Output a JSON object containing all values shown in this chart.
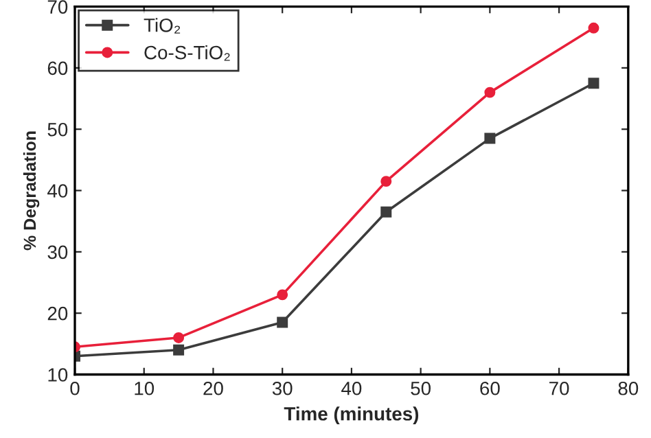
{
  "chart_data": {
    "type": "line",
    "xlabel": "Time (minutes)",
    "ylabel": "% Degradation",
    "x": [
      0,
      15,
      30,
      45,
      60,
      75
    ],
    "series": [
      {
        "name": "TiO₂",
        "color": "#3c3c3c",
        "marker": "square",
        "values": [
          13,
          14,
          18.5,
          36.5,
          48.5,
          57.5
        ]
      },
      {
        "name": "Co-S-TiO₂",
        "color": "#e8203a",
        "marker": "circle",
        "values": [
          14.5,
          16,
          23,
          41.5,
          56,
          66.5
        ]
      }
    ],
    "xlim": [
      0,
      80
    ],
    "xticks": [
      0,
      10,
      20,
      30,
      40,
      50,
      60,
      70,
      80
    ],
    "ylim": [
      10,
      70
    ],
    "yticks": [
      10,
      20,
      30,
      40,
      50,
      60,
      70
    ],
    "legend": "top left",
    "grid": false
  }
}
